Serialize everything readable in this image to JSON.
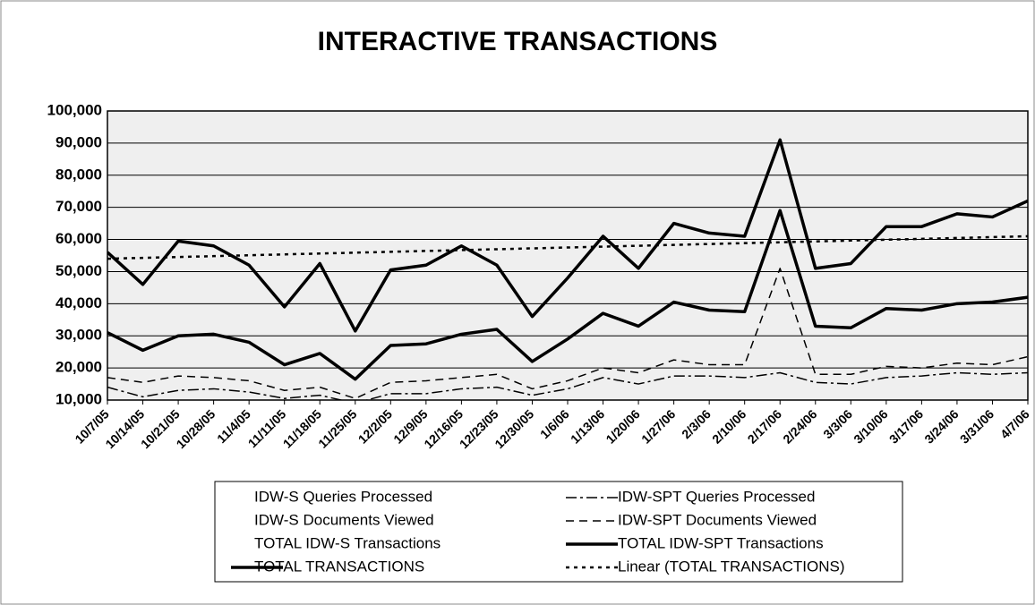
{
  "chart_data": {
    "type": "line",
    "title": "INTERACTIVE TRANSACTIONS",
    "categories": [
      "10/7/05",
      "10/14/05",
      "10/21/05",
      "10/28/05",
      "11/4/05",
      "11/11/05",
      "11/18/05",
      "11/25/05",
      "12/2/05",
      "12/9/05",
      "12/16/05",
      "12/23/05",
      "12/30/05",
      "1/6/06",
      "1/13/06",
      "1/20/06",
      "1/27/06",
      "2/3/06",
      "2/10/06",
      "2/17/06",
      "2/24/06",
      "3/3/06",
      "3/10/06",
      "3/17/06",
      "3/24/06",
      "3/31/06",
      "4/7/06"
    ],
    "ylim": [
      10000,
      100000
    ],
    "yticks": [
      {
        "value": 10000,
        "label": "10,000"
      },
      {
        "value": 20000,
        "label": "20,000"
      },
      {
        "value": 30000,
        "label": "30,000"
      },
      {
        "value": 40000,
        "label": "40,000"
      },
      {
        "value": 50000,
        "label": "50,000"
      },
      {
        "value": 60000,
        "label": "60,000"
      },
      {
        "value": 70000,
        "label": "70,000"
      },
      {
        "value": 80000,
        "label": "80,000"
      },
      {
        "value": 90000,
        "label": "90,000"
      },
      {
        "value": 100000,
        "label": "100,000"
      }
    ],
    "grid": true,
    "legend": "bottom",
    "series": [
      {
        "name": "IDW-S Queries Processed",
        "color": "#000000",
        "line_style": "none",
        "width": 0,
        "values": [
          null,
          null,
          null,
          null,
          null,
          null,
          null,
          null,
          null,
          null,
          null,
          null,
          null,
          null,
          null,
          null,
          null,
          null,
          null,
          null,
          null,
          null,
          null,
          null,
          null,
          null,
          null
        ]
      },
      {
        "name": "IDW-SPT Queries Processed",
        "color": "#000000",
        "line_style": "dashdot",
        "width": 1.5,
        "values": [
          14000,
          11000,
          13000,
          13500,
          12500,
          10500,
          11500,
          9000,
          12000,
          12000,
          13500,
          14000,
          11500,
          13500,
          17000,
          15000,
          17500,
          17500,
          17000,
          18500,
          15500,
          15000,
          17000,
          17500,
          18500,
          18000,
          18500
        ]
      },
      {
        "name": "IDW-S Documents Viewed",
        "color": "#000000",
        "line_style": "none",
        "width": 0,
        "values": [
          null,
          null,
          null,
          null,
          null,
          null,
          null,
          null,
          null,
          null,
          null,
          null,
          null,
          null,
          null,
          null,
          null,
          null,
          null,
          null,
          null,
          null,
          null,
          null,
          null,
          null,
          null
        ]
      },
      {
        "name": "IDW-SPT Documents Viewed",
        "color": "#000000",
        "line_style": "dash",
        "width": 1.5,
        "values": [
          17000,
          15500,
          17500,
          17000,
          16000,
          13000,
          14000,
          10500,
          15500,
          16000,
          17000,
          18000,
          13500,
          16000,
          20000,
          18500,
          22500,
          21000,
          21000,
          51000,
          18000,
          18000,
          20500,
          20000,
          21500,
          21000,
          23500
        ]
      },
      {
        "name": "TOTAL IDW-S Transactions",
        "color": "#000000",
        "line_style": "none",
        "width": 0,
        "values": [
          null,
          null,
          null,
          null,
          null,
          null,
          null,
          null,
          null,
          null,
          null,
          null,
          null,
          null,
          null,
          null,
          null,
          null,
          null,
          null,
          null,
          null,
          null,
          null,
          null,
          null,
          null
        ]
      },
      {
        "name": "TOTAL IDW-SPT Transactions",
        "color": "#000000",
        "line_style": "solid",
        "width": 3.5,
        "values": [
          31000,
          25500,
          30000,
          30500,
          28000,
          21000,
          24500,
          16500,
          27000,
          27500,
          30500,
          32000,
          22000,
          29000,
          37000,
          33000,
          40500,
          38000,
          37500,
          69000,
          33000,
          32500,
          38500,
          38000,
          40000,
          40500,
          42000
        ]
      },
      {
        "name": "TOTAL TRANSACTIONS",
        "color": "#000000",
        "line_style": "solid",
        "width": 3.5,
        "values": [
          56000,
          46000,
          59500,
          58000,
          52000,
          39000,
          52500,
          31500,
          50500,
          52000,
          58000,
          52000,
          36000,
          48000,
          61000,
          51000,
          65000,
          62000,
          61000,
          91000,
          51000,
          52500,
          64000,
          64000,
          68000,
          67000,
          72000
        ]
      },
      {
        "name": "Linear (TOTAL TRANSACTIONS)",
        "color": "#000000",
        "line_style": "dot",
        "width": 2.5,
        "values": [
          54000,
          54270,
          54540,
          54810,
          55080,
          55350,
          55620,
          55890,
          56150,
          56420,
          56690,
          56960,
          57230,
          57500,
          57770,
          58040,
          58310,
          58580,
          58850,
          59120,
          59380,
          59650,
          59920,
          60190,
          60460,
          60730,
          61000
        ]
      }
    ]
  }
}
